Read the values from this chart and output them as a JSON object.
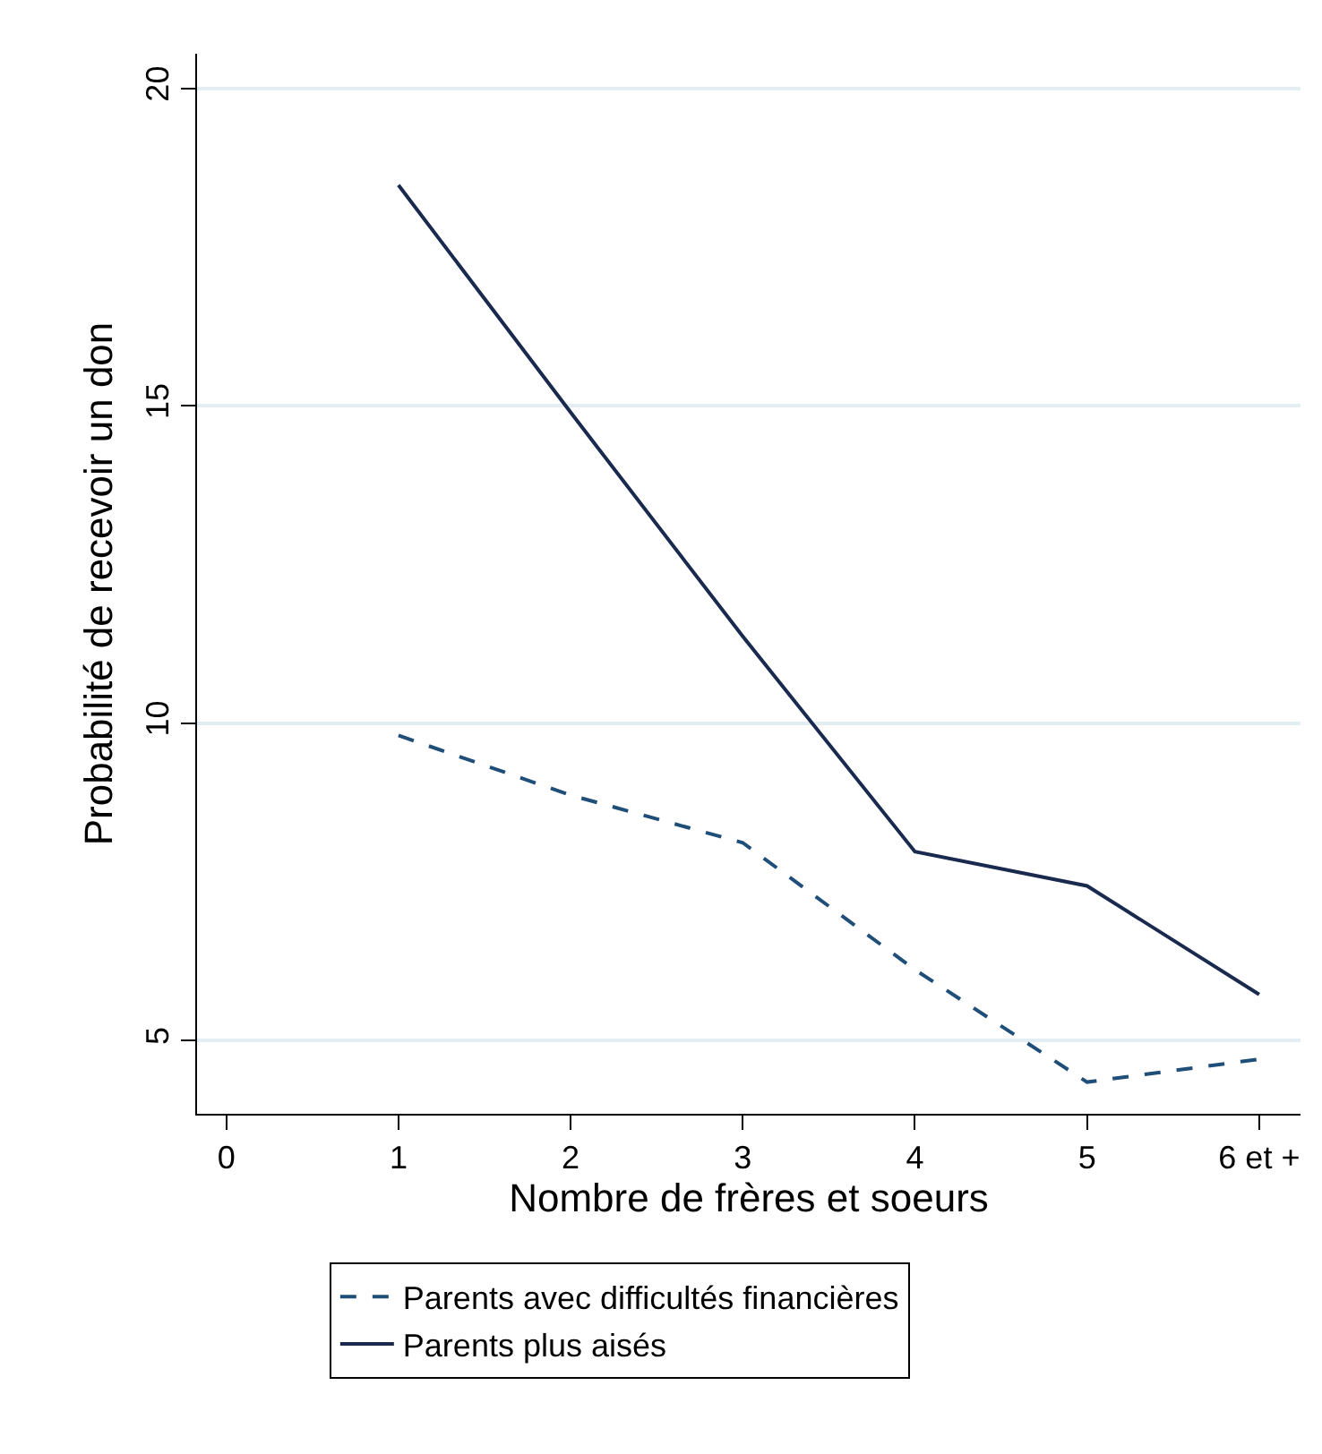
{
  "chart_data": {
    "type": "line",
    "xlabel": "Nombre de frères et soeurs",
    "ylabel": "Probabilité de recevoir un don",
    "x": [
      1,
      2,
      3,
      4,
      5,
      6
    ],
    "series": [
      {
        "name": "Parents avec difficultés financières",
        "color": "#1f4e79",
        "line_style": "dashed",
        "values": [
          9.81,
          8.87,
          8.12,
          6.12,
          4.35,
          4.71
        ]
      },
      {
        "name": "Parents plus aisés",
        "color": "#1a2a4e",
        "line_style": "solid",
        "values": [
          18.48,
          14.9,
          11.37,
          7.98,
          7.44,
          5.73
        ]
      }
    ],
    "xlim": [
      -0.17,
      6.24
    ],
    "xticks": [
      0,
      1,
      2,
      3,
      4,
      5,
      {
        "value": 6,
        "label": "6 et +"
      }
    ],
    "ylim": [
      3.85,
      20.55
    ],
    "yticks": [
      5,
      10,
      15,
      20
    ],
    "grid": "y",
    "legend": "bottom",
    "marker": "none"
  }
}
